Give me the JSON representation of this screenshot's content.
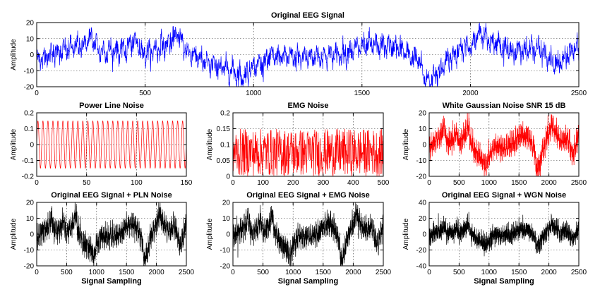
{
  "chart_data": [
    {
      "type": "line",
      "title": "Original EEG Signal",
      "ylabel": "Amplitude",
      "xlabel": "",
      "xlim": [
        0,
        2500
      ],
      "ylim": [
        -20,
        20
      ],
      "xticks": [
        0,
        500,
        1000,
        1500,
        2000,
        2500
      ],
      "yticks": [
        -20,
        -10,
        0,
        10,
        20
      ],
      "grid": true,
      "color": "#0000ff",
      "x_samples": [
        0,
        100,
        200,
        250,
        300,
        400,
        450,
        500,
        600,
        650,
        700,
        800,
        850,
        900,
        950,
        1000,
        1100,
        1200,
        1300,
        1400,
        1500,
        1550,
        1650,
        1750,
        1800,
        1850,
        1900,
        2000,
        2050,
        2100,
        2200,
        2300,
        2400,
        2500
      ],
      "y_samples": [
        -3,
        2,
        5,
        10,
        2,
        3,
        8,
        1,
        6,
        12,
        1,
        -6,
        -8,
        -10,
        -14,
        -7,
        -1,
        -2,
        -1,
        0,
        5,
        6,
        5,
        -2,
        -16,
        -12,
        -2,
        6,
        13,
        8,
        2,
        4,
        -6,
        5
      ]
    },
    {
      "type": "line",
      "title": "Power Line Noise",
      "ylabel": "Amplitude",
      "xlabel": "",
      "xlim": [
        0,
        150
      ],
      "ylim": [
        -0.2,
        0.2
      ],
      "xticks": [
        0,
        50,
        100,
        150
      ],
      "yticks": [
        -0.2,
        -0.1,
        0,
        0.1,
        0.2
      ],
      "ytick_labels": [
        "-0.2",
        "-0.1",
        "0",
        "0.1",
        "0.2"
      ],
      "grid": true,
      "color": "#ff0000",
      "amplitude": 0.15,
      "period": 5
    },
    {
      "type": "line",
      "title": "EMG Noise",
      "ylabel": "Amplitude",
      "xlabel": "",
      "xlim": [
        0,
        500
      ],
      "ylim": [
        0,
        0.2
      ],
      "xticks": [
        0,
        100,
        200,
        300,
        400,
        500
      ],
      "yticks": [
        0,
        0.05,
        0.1,
        0.15,
        0.2
      ],
      "ytick_labels": [
        "0",
        "0.05",
        "0.1",
        "0.15",
        "0.2"
      ],
      "grid": true,
      "color": "#ff0000",
      "value_range": [
        0,
        0.15
      ]
    },
    {
      "type": "line",
      "title": "White Gaussian Noise SNR 15 dB",
      "ylabel": "Amplitude",
      "xlabel": "",
      "xlim": [
        0,
        2500
      ],
      "ylim": [
        -20,
        20
      ],
      "xticks": [
        0,
        500,
        1000,
        1500,
        2000,
        2500
      ],
      "yticks": [
        -20,
        -10,
        0,
        10,
        20
      ],
      "grid": true,
      "color": "#ff0000",
      "noise_amplitude": 1.5
    },
    {
      "type": "line",
      "title": "Original EEG Signal + PLN Noise",
      "ylabel": "Amplitude",
      "xlabel": "Signal Sampling",
      "xlim": [
        0,
        2500
      ],
      "ylim": [
        -20,
        20
      ],
      "xticks": [
        0,
        500,
        1000,
        1500,
        2000,
        2500
      ],
      "yticks": [
        -20,
        -10,
        0,
        10,
        20
      ],
      "grid": true,
      "color": "#000000",
      "noise_amplitude": 1.5
    },
    {
      "type": "line",
      "title": "Original EEG Signal + EMG Noise",
      "ylabel": "Amplitude",
      "xlabel": "Signal Sampling",
      "xlim": [
        0,
        2500
      ],
      "ylim": [
        -20,
        20
      ],
      "xticks": [
        0,
        500,
        1000,
        1500,
        2000,
        2500
      ],
      "yticks": [
        -20,
        -10,
        0,
        10,
        20
      ],
      "grid": true,
      "color": "#000000",
      "noise_amplitude": 1.5
    },
    {
      "type": "line",
      "title": "Original EEG Signal + WGN Noise",
      "ylabel": "Amplitude",
      "xlabel": "Signal Sampling",
      "xlim": [
        0,
        2500
      ],
      "ylim": [
        -40,
        40
      ],
      "xticks": [
        0,
        500,
        1000,
        1500,
        2000,
        2500
      ],
      "yticks": [
        -40,
        -20,
        0,
        20,
        40
      ],
      "grid": true,
      "color": "#000000",
      "noise_amplitude": 3
    }
  ]
}
